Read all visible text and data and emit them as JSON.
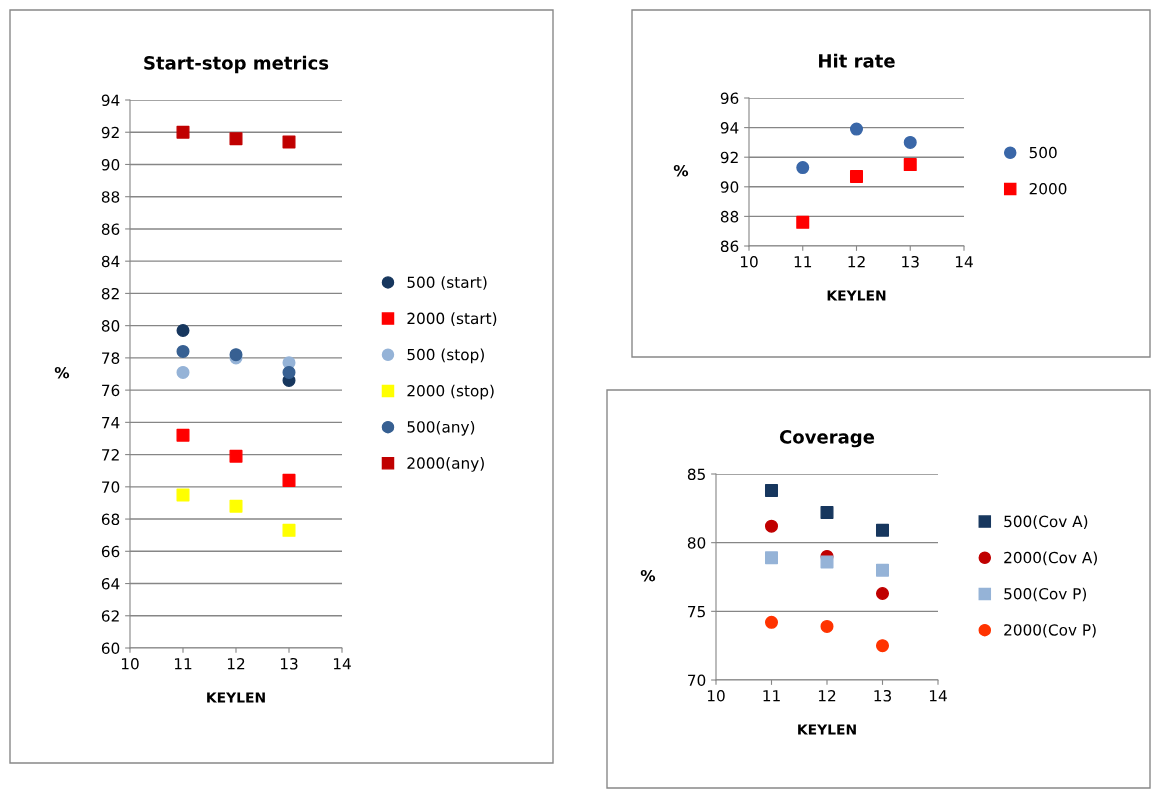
{
  "chart_data": [
    {
      "type": "scatter",
      "title": "Start-stop metrics",
      "xlabel": "KEYLEN",
      "ylabel": "%",
      "xlim": [
        10,
        14
      ],
      "xticks": [
        10,
        11,
        12,
        13,
        14
      ],
      "ylim": [
        60,
        94
      ],
      "yticks": [
        60,
        62,
        64,
        66,
        68,
        70,
        72,
        74,
        76,
        78,
        80,
        82,
        84,
        86,
        88,
        90,
        92,
        94
      ],
      "grid": "y",
      "legend": "right",
      "x": [
        11,
        12,
        13
      ],
      "series": [
        {
          "name": "500 (start)",
          "color": "#17375e",
          "marker": "circle",
          "values": [
            79.7,
            null,
            76.6
          ]
        },
        {
          "name": "2000 (start)",
          "color": "#ff0000",
          "marker": "square",
          "values": [
            73.2,
            71.9,
            70.4
          ]
        },
        {
          "name": "500 (stop)",
          "color": "#95b3d7",
          "marker": "circle",
          "values": [
            77.1,
            78.0,
            77.7
          ]
        },
        {
          "name": "2000 (stop)",
          "color": "#ffff00",
          "marker": "square",
          "values": [
            69.5,
            68.8,
            67.3
          ]
        },
        {
          "name": "500(any)",
          "color": "#376092",
          "marker": "circle",
          "values": [
            78.4,
            78.2,
            77.1
          ]
        },
        {
          "name": "2000(any)",
          "color": "#c00000",
          "marker": "square",
          "values": [
            92.0,
            91.6,
            91.4
          ]
        }
      ]
    },
    {
      "type": "scatter",
      "title": "Hit rate",
      "xlabel": "KEYLEN",
      "ylabel": "%",
      "xlim": [
        10,
        14
      ],
      "xticks": [
        10,
        11,
        12,
        13,
        14
      ],
      "ylim": [
        86,
        96
      ],
      "yticks": [
        86,
        88,
        90,
        92,
        94,
        96
      ],
      "grid": "y",
      "legend": "right",
      "x": [
        11,
        12,
        13
      ],
      "series": [
        {
          "name": "500",
          "color": "#3a67a8",
          "marker": "circle",
          "values": [
            91.3,
            93.9,
            93.0
          ]
        },
        {
          "name": "2000",
          "color": "#ff0000",
          "marker": "square",
          "values": [
            87.6,
            90.7,
            91.5
          ]
        }
      ]
    },
    {
      "type": "scatter",
      "title": "Coverage",
      "xlabel": "KEYLEN",
      "ylabel": "%",
      "xlim": [
        10,
        14
      ],
      "xticks": [
        10,
        11,
        12,
        13,
        14
      ],
      "ylim": [
        70,
        85
      ],
      "yticks": [
        70,
        75,
        80,
        85
      ],
      "grid": "y",
      "legend": "right",
      "x": [
        11,
        12,
        13
      ],
      "series": [
        {
          "name": "500(Cov A)",
          "color": "#17375e",
          "marker": "square",
          "values": [
            83.8,
            82.2,
            80.9
          ]
        },
        {
          "name": "2000(Cov A)",
          "color": "#c00000",
          "marker": "circle",
          "values": [
            81.2,
            79.0,
            76.3
          ]
        },
        {
          "name": "500(Cov P)",
          "color": "#95b3d7",
          "marker": "square",
          "values": [
            78.9,
            78.6,
            78.0
          ]
        },
        {
          "name": "2000(Cov P)",
          "color": "#ff3300",
          "marker": "circle",
          "values": [
            74.2,
            73.9,
            72.5
          ]
        }
      ]
    }
  ]
}
